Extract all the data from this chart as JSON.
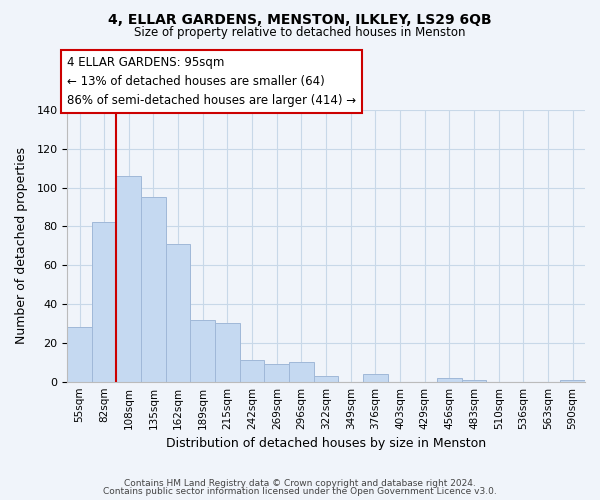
{
  "title": "4, ELLAR GARDENS, MENSTON, ILKLEY, LS29 6QB",
  "subtitle": "Size of property relative to detached houses in Menston",
  "xlabel": "Distribution of detached houses by size in Menston",
  "ylabel": "Number of detached properties",
  "categories": [
    "55sqm",
    "82sqm",
    "108sqm",
    "135sqm",
    "162sqm",
    "189sqm",
    "215sqm",
    "242sqm",
    "269sqm",
    "296sqm",
    "322sqm",
    "349sqm",
    "376sqm",
    "403sqm",
    "429sqm",
    "456sqm",
    "483sqm",
    "510sqm",
    "536sqm",
    "563sqm",
    "590sqm"
  ],
  "values": [
    28,
    82,
    106,
    95,
    71,
    32,
    30,
    11,
    9,
    10,
    3,
    0,
    4,
    0,
    0,
    2,
    1,
    0,
    0,
    0,
    1
  ],
  "bar_color": "#c5d9f1",
  "bar_edge_color": "#a0b8d8",
  "vline_x_index": 1,
  "vline_color": "#cc0000",
  "ylim": [
    0,
    140
  ],
  "yticks": [
    0,
    20,
    40,
    60,
    80,
    100,
    120,
    140
  ],
  "annotation_title": "4 ELLAR GARDENS: 95sqm",
  "annotation_line1": "← 13% of detached houses are smaller (64)",
  "annotation_line2": "86% of semi-detached houses are larger (414) →",
  "annotation_box_color": "#ffffff",
  "annotation_box_edge": "#cc0000",
  "footer_line1": "Contains HM Land Registry data © Crown copyright and database right 2024.",
  "footer_line2": "Contains public sector information licensed under the Open Government Licence v3.0.",
  "grid_color": "#c8d8e8",
  "background_color": "#f0f4fa"
}
